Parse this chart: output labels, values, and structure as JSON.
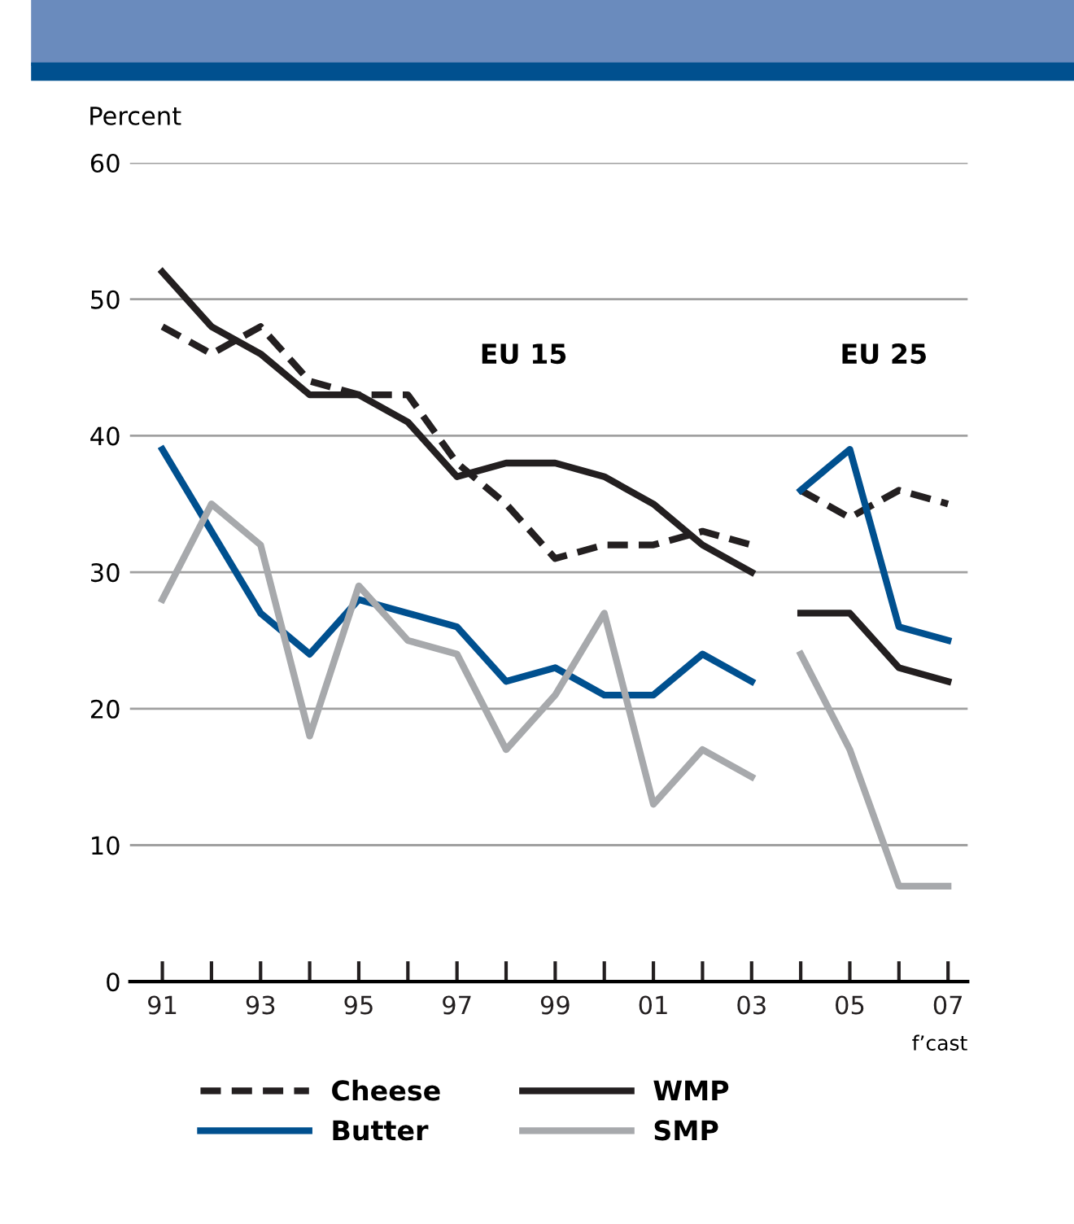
{
  "chart_data": {
    "type": "line",
    "categories": [
      "91",
      null,
      "93",
      null,
      "95",
      null,
      "97",
      null,
      "99",
      null,
      "01",
      null,
      "03",
      null,
      "05",
      null,
      "07"
    ],
    "ylabel": "Percent",
    "ylim": [
      0,
      60
    ],
    "yticks": [
      0,
      10,
      20,
      30,
      40,
      50,
      60
    ],
    "grid": "y",
    "legend": "bottom",
    "marker": "none",
    "annotations": [
      "EU 15",
      "EU 25",
      "f’cast"
    ],
    "series": [
      {
        "name": "Cheese",
        "color": "#231f20",
        "line_style": "dashed",
        "values": [
          48,
          46,
          48,
          44,
          43,
          43,
          38,
          35,
          31,
          32,
          32,
          33,
          32,
          null,
          null,
          null,
          null
        ]
      },
      {
        "color": "#231f20",
        "line_style": "dashed",
        "values": [
          null,
          null,
          null,
          null,
          null,
          null,
          null,
          null,
          null,
          null,
          null,
          null,
          null,
          36,
          34,
          36,
          35
        ]
      },
      {
        "name": "Butter",
        "color": "#00508f",
        "line_style": "solid",
        "values": [
          39,
          33,
          27,
          24,
          28,
          27,
          26,
          22,
          23,
          21,
          21,
          24,
          22,
          null,
          null,
          null,
          null
        ]
      },
      {
        "color": "#00508f",
        "line_style": "solid",
        "values": [
          null,
          null,
          null,
          null,
          null,
          null,
          null,
          null,
          null,
          null,
          null,
          null,
          null,
          36,
          39,
          26,
          25
        ]
      },
      {
        "name": "WMP",
        "color": "#231f20",
        "line_style": "solid",
        "values": [
          52,
          48,
          46,
          43,
          43,
          41,
          37,
          38,
          38,
          37,
          35,
          32,
          30,
          null,
          null,
          null,
          null
        ]
      },
      {
        "color": "#231f20",
        "line_style": "solid",
        "values": [
          null,
          null,
          null,
          null,
          null,
          null,
          null,
          null,
          null,
          null,
          null,
          null,
          null,
          27,
          27,
          23,
          22
        ]
      },
      {
        "name": "SMP",
        "color": "#a7a9ac",
        "line_style": "solid",
        "values": [
          28,
          35,
          32,
          18,
          29,
          25,
          24,
          17,
          21,
          27,
          13,
          17,
          15,
          null,
          null,
          null,
          null
        ]
      },
      {
        "color": "#a7a9ac",
        "line_style": "solid",
        "values": [
          null,
          null,
          null,
          null,
          null,
          null,
          null,
          null,
          null,
          null,
          null,
          null,
          null,
          24,
          17,
          7,
          7
        ]
      }
    ]
  }
}
